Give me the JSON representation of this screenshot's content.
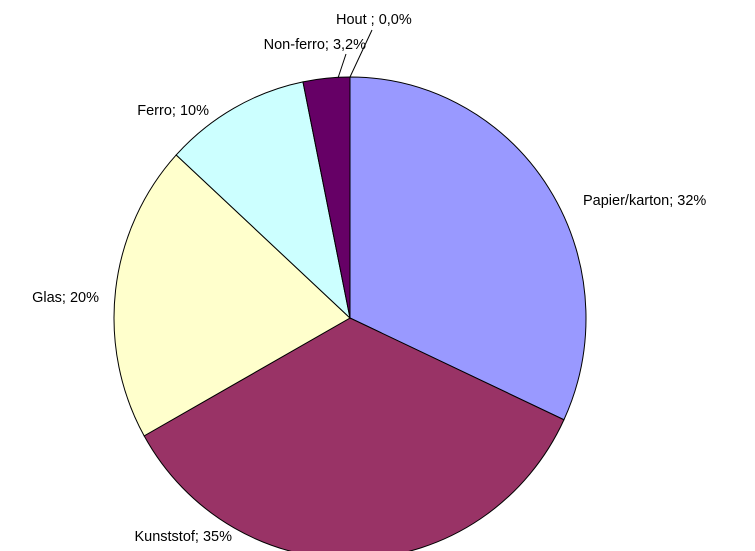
{
  "chart_data": {
    "type": "pie",
    "categories": [
      "Papier/karton",
      "Kunststof",
      "Glas",
      "Ferro",
      "Non-ferro",
      "Hout"
    ],
    "values": [
      32,
      35,
      20,
      10,
      3.2,
      0.0
    ],
    "value_labels": [
      "Papier/karton; 32%",
      "Kunststof; 35%",
      "Glas; 20%",
      "Ferro; 10%",
      "Non-ferro; 3,2%",
      "Hout ; 0,0%"
    ],
    "colors": [
      "#9999ff",
      "#993366",
      "#ffffcc",
      "#ccffff",
      "#660066",
      "#ff8080"
    ]
  }
}
